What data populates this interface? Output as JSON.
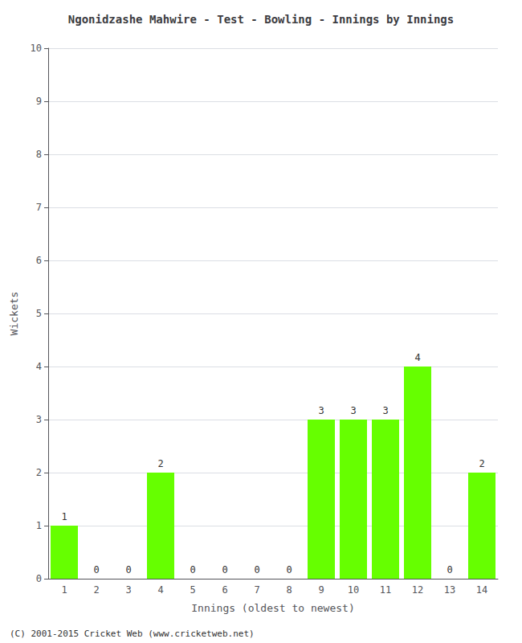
{
  "chart_data": {
    "type": "bar",
    "title": "Ngonidzashe Mahwire - Test - Bowling - Innings by Innings",
    "xlabel": "Innings (oldest to newest)",
    "ylabel": "Wickets",
    "categories": [
      "1",
      "2",
      "3",
      "4",
      "5",
      "6",
      "7",
      "8",
      "9",
      "10",
      "11",
      "12",
      "13",
      "14"
    ],
    "values": [
      1,
      0,
      0,
      2,
      0,
      0,
      0,
      0,
      3,
      3,
      3,
      4,
      0,
      2
    ],
    "color": "#66ff00",
    "ylim": [
      0,
      10
    ],
    "yticks": [
      0,
      1,
      2,
      3,
      4,
      5,
      6,
      7,
      8,
      9,
      10
    ],
    "grid": true,
    "data_labels": true,
    "annotations": [
      "(C) 2001-2015 Cricket Web (www.cricketweb.net)"
    ]
  }
}
